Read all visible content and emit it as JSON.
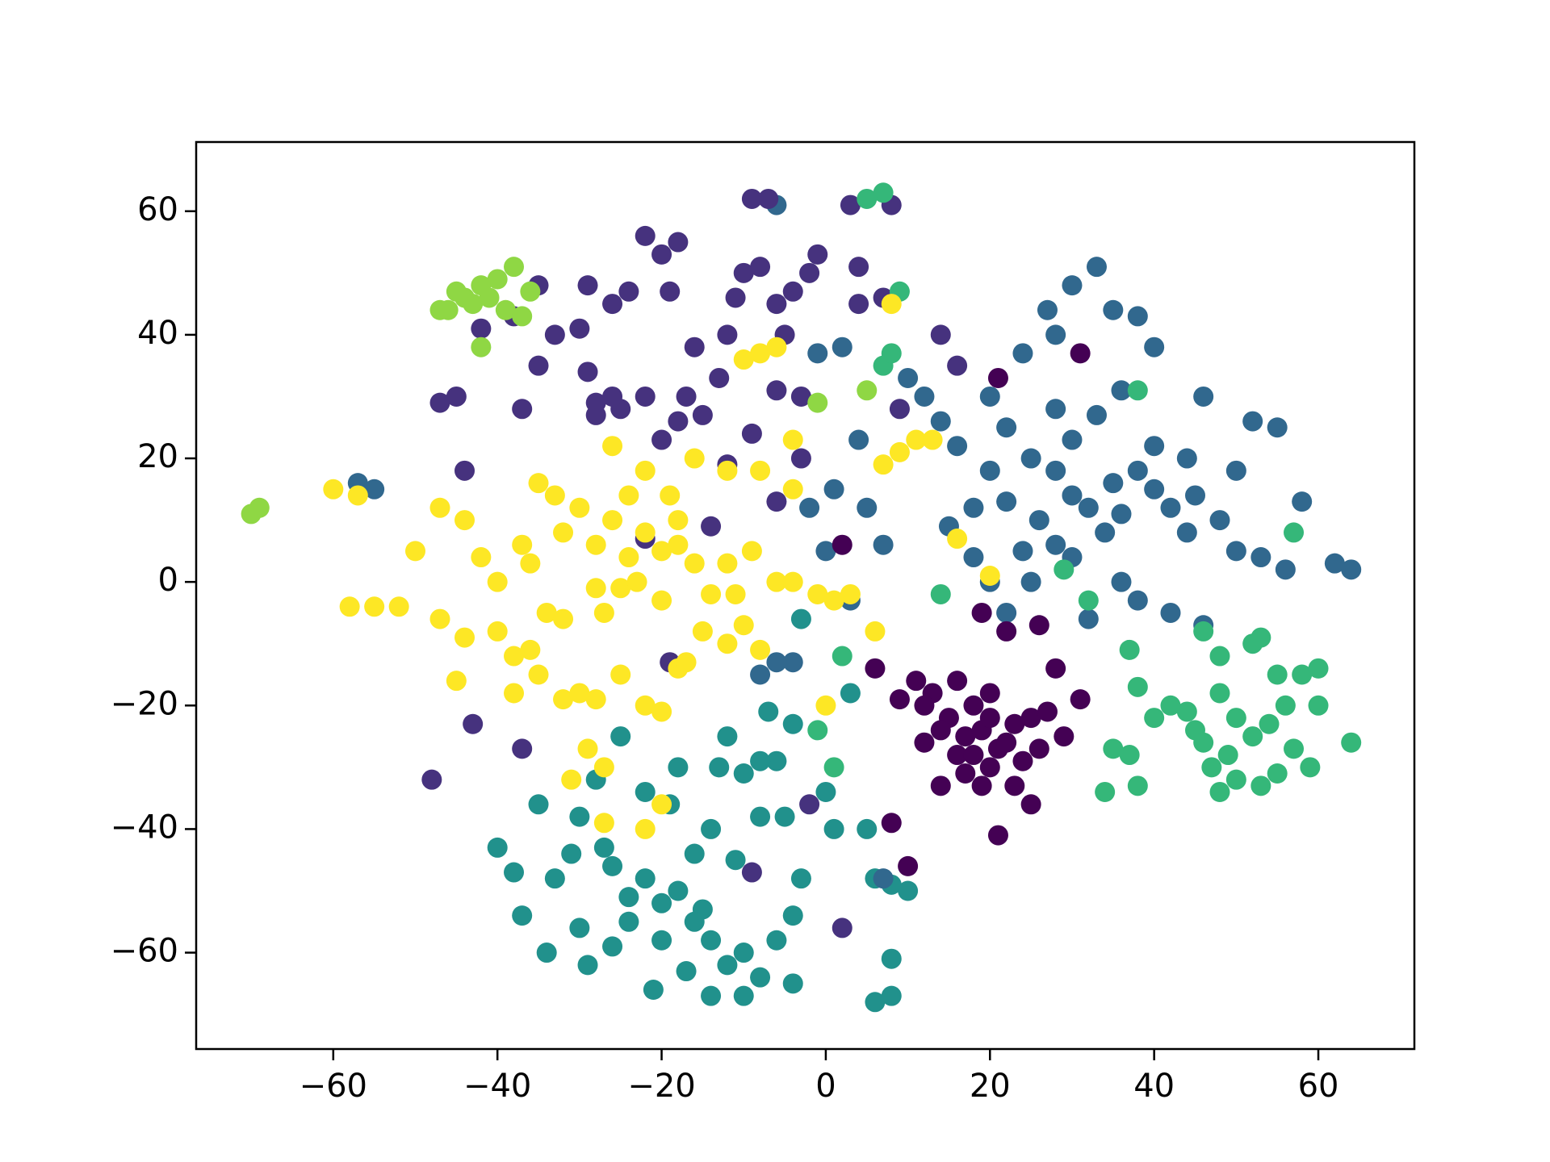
{
  "chart_data": {
    "type": "scatter",
    "xlim": [
      -76.7,
      71.7
    ],
    "ylim": [
      -75.6,
      71.2
    ],
    "xticks": [
      {
        "value": -60,
        "label": "−60"
      },
      {
        "value": -40,
        "label": "−40"
      },
      {
        "value": -20,
        "label": "−20"
      },
      0,
      20,
      40,
      60
    ],
    "yticks": [
      {
        "value": -60,
        "label": "−60"
      },
      {
        "value": -40,
        "label": "−40"
      },
      {
        "value": -20,
        "label": "−20"
      },
      0,
      20,
      40,
      60
    ],
    "grid": false,
    "series": [
      {
        "color": "#21918c",
        "x": [
          -22,
          -20,
          -18,
          -24,
          -26,
          -16,
          -14,
          -12,
          -10,
          -8,
          -6,
          -4,
          -3,
          -5,
          -8,
          -11,
          -14,
          -18,
          -22,
          -25,
          -28,
          -30,
          -35,
          -37,
          -40,
          -38,
          -33,
          -30,
          -29,
          -26,
          -21,
          -17,
          -14,
          -10,
          -4,
          -12,
          -10,
          -6,
          -4,
          -7,
          3,
          0,
          1,
          5,
          6,
          8,
          6,
          8,
          -31,
          -27,
          -19,
          -34,
          -20,
          -24,
          -15,
          -16,
          -3,
          -13,
          -8,
          8,
          10
        ],
        "values": [
          -48,
          -52,
          -50,
          -55,
          -46,
          -44,
          -58,
          -62,
          -60,
          -64,
          -58,
          -54,
          -48,
          -38,
          -38,
          -45,
          -40,
          -30,
          -34,
          -25,
          -32,
          -38,
          -36,
          -54,
          -43,
          -47,
          -48,
          -56,
          -62,
          -59,
          -66,
          -63,
          -67,
          -67,
          -65,
          -25,
          -31,
          -29,
          -23,
          -21,
          -18,
          -34,
          -40,
          -40,
          -48,
          -49,
          -68,
          -61,
          -44,
          -43,
          -36,
          -60,
          -58,
          -51,
          -53,
          -55,
          -6,
          -30,
          -29,
          -67,
          -50
        ]
      },
      {
        "color": "#31688e",
        "x": [
          27,
          30,
          33,
          35,
          38,
          40,
          28,
          24,
          20,
          22,
          25,
          28,
          30,
          32,
          35,
          38,
          40,
          42,
          45,
          48,
          50,
          52,
          55,
          46,
          44,
          50,
          53,
          56,
          58,
          62,
          64,
          26,
          24,
          22,
          20,
          18,
          16,
          14,
          12,
          10,
          15,
          18,
          20,
          22,
          25,
          28,
          30,
          34,
          36,
          38,
          42,
          46,
          7,
          5,
          4,
          1,
          -2,
          0,
          3,
          -4,
          -6,
          -8,
          -6,
          32,
          36,
          40,
          44,
          -57,
          -55,
          36,
          33,
          30,
          28,
          7,
          -1,
          2
        ],
        "values": [
          44,
          48,
          51,
          44,
          43,
          38,
          40,
          37,
          30,
          25,
          20,
          18,
          14,
          12,
          16,
          18,
          15,
          12,
          14,
          10,
          18,
          26,
          25,
          30,
          8,
          5,
          4,
          2,
          13,
          3,
          2,
          10,
          5,
          13,
          18,
          12,
          22,
          26,
          30,
          33,
          9,
          4,
          0,
          -5,
          0,
          6,
          4,
          8,
          0,
          -3,
          -5,
          -7,
          6,
          12,
          23,
          15,
          12,
          5,
          -3,
          -13,
          -13,
          -15,
          61,
          -6,
          11,
          22,
          20,
          16,
          15,
          31,
          27,
          23,
          28,
          -48,
          37,
          38
        ]
      },
      {
        "color": "#46327e",
        "x": [
          -22,
          -20,
          -18,
          -24,
          -26,
          -17,
          -22,
          -25,
          -29,
          -35,
          -30,
          -33,
          -37,
          -47,
          -45,
          -44,
          -38,
          -35,
          -29,
          -9,
          -7,
          -10,
          -8,
          -6,
          -4,
          -2,
          -1,
          -5,
          -12,
          -13,
          -16,
          -18,
          -20,
          -9,
          -6,
          -3,
          -11,
          4,
          4,
          7,
          9,
          3,
          -28,
          -26,
          -19,
          -48,
          -43,
          -37,
          -22,
          -19,
          -14,
          -9,
          -2,
          2,
          8,
          14,
          16,
          -3,
          -6,
          -28,
          -15,
          -12,
          -42
        ],
        "values": [
          56,
          53,
          55,
          47,
          45,
          30,
          30,
          28,
          48,
          48,
          41,
          40,
          28,
          29,
          30,
          18,
          43,
          35,
          34,
          62,
          62,
          50,
          51,
          45,
          47,
          50,
          53,
          40,
          40,
          33,
          38,
          26,
          23,
          24,
          31,
          30,
          46,
          51,
          45,
          46,
          28,
          61,
          27,
          30,
          47,
          -32,
          -23,
          -27,
          7,
          -13,
          9,
          -47,
          -36,
          -56,
          61,
          40,
          35,
          20,
          13,
          29,
          27,
          19,
          41
        ]
      },
      {
        "color": "#35b779",
        "x": [
          48,
          50,
          52,
          49,
          47,
          45,
          44,
          52,
          55,
          58,
          60,
          56,
          54,
          57,
          59,
          55,
          50,
          48,
          53,
          46,
          42,
          40,
          37,
          35,
          38,
          34,
          38,
          37,
          38,
          46,
          64,
          60,
          -1,
          1,
          2,
          14,
          7,
          8,
          9,
          7,
          5,
          32,
          29,
          53,
          48,
          57
        ],
        "values": [
          -18,
          -22,
          -25,
          -28,
          -30,
          -24,
          -21,
          -10,
          -15,
          -15,
          -14,
          -20,
          -23,
          -27,
          -30,
          -31,
          -32,
          -34,
          -33,
          -26,
          -20,
          -22,
          -28,
          -27,
          -33,
          -34,
          -17,
          -11,
          31,
          -8,
          -26,
          -20,
          -24,
          -30,
          -12,
          -2,
          35,
          37,
          47,
          63,
          62,
          -3,
          2,
          -9,
          -12,
          8
        ]
      },
      {
        "color": "#8fd744",
        "x": [
          -46,
          -44,
          -42,
          -40,
          -38,
          -45,
          -43,
          -39,
          -37,
          -41,
          -47,
          -36,
          -42,
          -70,
          -69,
          5,
          -1
        ],
        "values": [
          44,
          46,
          48,
          49,
          51,
          47,
          45,
          44,
          43,
          46,
          44,
          47,
          38,
          11,
          12,
          31,
          29
        ]
      },
      {
        "color": "#fde725",
        "x": [
          -22,
          -20,
          -18,
          -24,
          -26,
          -16,
          -14,
          -20,
          -25,
          -28,
          -30,
          -33,
          -35,
          -32,
          -36,
          -40,
          -42,
          -44,
          -47,
          -50,
          -52,
          -55,
          -58,
          -60,
          -57,
          -47,
          -44,
          -40,
          -38,
          -35,
          -32,
          -28,
          -25,
          -22,
          -20,
          -18,
          -15,
          -12,
          -10,
          -8,
          -12,
          -9,
          -6,
          -4,
          -1,
          1,
          3,
          6,
          -45,
          -38,
          -29,
          -27,
          -31,
          -27,
          -20,
          -22,
          -30,
          -26,
          -22,
          -19,
          -16,
          -12,
          -8,
          -10,
          -8,
          -6,
          -4,
          -4,
          7,
          9,
          11,
          13,
          16,
          20,
          8,
          -23,
          -27,
          -34,
          -37,
          -17,
          -11,
          -24,
          -28,
          -32,
          -36,
          -18,
          0
        ],
        "values": [
          8,
          5,
          10,
          4,
          10,
          3,
          -2,
          -3,
          -1,
          6,
          12,
          14,
          16,
          8,
          3,
          0,
          4,
          10,
          12,
          5,
          -4,
          -4,
          -4,
          15,
          14,
          -6,
          -9,
          -8,
          -12,
          -15,
          -19,
          -19,
          -15,
          -20,
          -21,
          -14,
          -8,
          -10,
          -7,
          -11,
          3,
          5,
          0,
          0,
          -2,
          -3,
          -2,
          -8,
          -16,
          -18,
          -27,
          -30,
          -32,
          -39,
          -36,
          -40,
          -18,
          22,
          18,
          14,
          20,
          18,
          18,
          36,
          37,
          38,
          23,
          15,
          19,
          21,
          23,
          23,
          7,
          1,
          45,
          0,
          -5,
          -5,
          6,
          -13,
          -2,
          14,
          -1,
          -6,
          -11,
          6,
          -20
        ]
      },
      {
        "color": "#440154",
        "x": [
          15,
          17,
          19,
          21,
          23,
          16,
          18,
          20,
          22,
          14,
          13,
          25,
          24,
          12,
          11,
          19,
          20,
          17,
          25,
          26,
          28,
          31,
          29,
          9,
          8,
          21,
          22,
          6,
          10,
          2,
          31,
          21,
          19,
          26,
          14,
          16,
          23,
          18,
          20,
          12,
          27
        ],
        "values": [
          -22,
          -25,
          -24,
          -27,
          -23,
          -28,
          -20,
          -30,
          -26,
          -24,
          -18,
          -22,
          -29,
          -26,
          -16,
          -33,
          -18,
          -31,
          -36,
          -27,
          -14,
          -19,
          -25,
          -19,
          -39,
          -41,
          -8,
          -14,
          -46,
          6,
          37,
          33,
          -5,
          -7,
          -33,
          -16,
          -33,
          -28,
          -22,
          -20,
          -21
        ]
      }
    ]
  }
}
